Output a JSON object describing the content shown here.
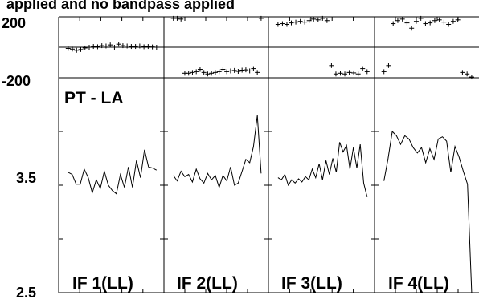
{
  "header": {
    "title": "applied and no bandpass applied"
  },
  "chart_data": {
    "type": "line",
    "baseline": "PT - LA",
    "phase_axis": {
      "ticks": [
        "200",
        "-200"
      ],
      "ylim": [
        -200,
        200
      ]
    },
    "amp_axis": {
      "ticks": [
        "3.5",
        "2.5"
      ],
      "ylim": [
        2.5,
        4.5
      ]
    },
    "panels": [
      {
        "label": "IF 1(LL)",
        "phase": [
          -8,
          -12,
          -20,
          -15,
          -5,
          0,
          5,
          3,
          10,
          8,
          15,
          0,
          20,
          10,
          8,
          5,
          5,
          8,
          3,
          5,
          2,
          0
        ],
        "amp": [
          3.62,
          3.6,
          3.51,
          3.51,
          3.65,
          3.57,
          3.43,
          3.55,
          3.47,
          3.63,
          3.5,
          3.45,
          3.42,
          3.6,
          3.48,
          3.67,
          3.48,
          3.73,
          3.57,
          3.83,
          3.67,
          3.66,
          3.64
        ]
      },
      {
        "label": "IF 2(LL)",
        "phase": [
          190,
          190,
          185,
          -170,
          -170,
          -165,
          -160,
          -145,
          -165,
          -175,
          -170,
          -165,
          -160,
          -145,
          -160,
          -155,
          -152,
          -158,
          -150,
          -148,
          -155,
          -140,
          -165,
          190
        ],
        "amp": [
          3.59,
          3.54,
          3.63,
          3.58,
          3.6,
          3.53,
          3.65,
          3.56,
          3.52,
          3.61,
          3.55,
          3.59,
          3.48,
          3.59,
          3.54,
          3.67,
          3.5,
          3.52,
          3.63,
          3.74,
          3.71,
          3.86,
          4.15,
          3.61
        ]
      },
      {
        "label": "IF 3(LL)",
        "phase": [
          150,
          155,
          150,
          160,
          165,
          170,
          165,
          175,
          185,
          180,
          190,
          175,
          -120,
          -175,
          -170,
          -175,
          -165,
          -168,
          -175,
          -140,
          -160
        ],
        "amp": [
          3.57,
          3.55,
          3.6,
          3.5,
          3.55,
          3.52,
          3.56,
          3.53,
          3.58,
          3.55,
          3.65,
          3.57,
          3.7,
          3.55,
          3.73,
          3.6,
          3.75,
          3.62,
          3.9,
          3.81,
          3.87,
          3.65,
          3.85,
          3.66,
          3.88,
          3.52,
          3.39
        ]
      },
      {
        "label": "IF 4(LL)",
        "phase": [
          -160,
          -120,
          155,
          175,
          185,
          160,
          125,
          170,
          190,
          155,
          160,
          175,
          180,
          165,
          150,
          170,
          180,
          -165,
          -175,
          -195
        ],
        "amp": [
          3.54,
          3.75,
          4.0,
          3.96,
          3.88,
          3.96,
          3.93,
          3.85,
          3.8,
          3.85,
          3.71,
          3.84,
          3.74,
          3.93,
          3.95,
          3.91,
          3.62,
          3.86,
          3.76,
          3.63,
          3.51,
          2.5
        ]
      }
    ]
  }
}
